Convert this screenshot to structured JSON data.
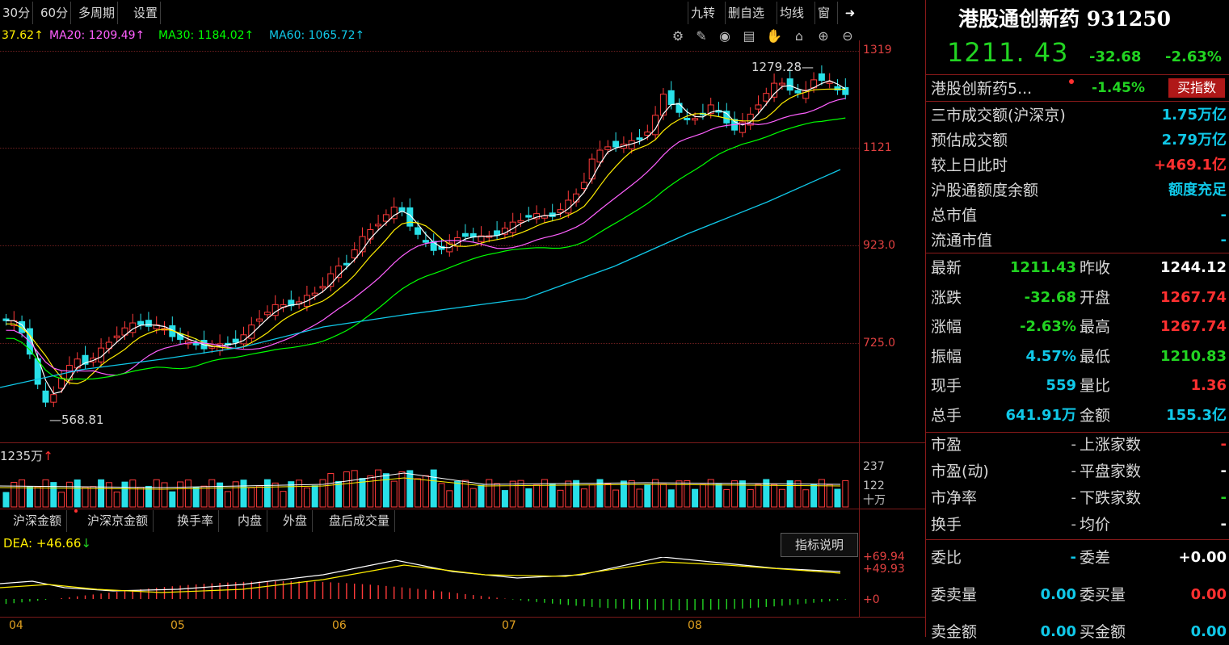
{
  "toolbar": {
    "left": [
      "30分",
      "60分",
      "多周期",
      "设置"
    ],
    "right": [
      "九转",
      "删自选",
      "均线",
      "窗"
    ]
  },
  "ma_legend": {
    "ma10": "37.62↑",
    "ma20": "MA20: 1209.49↑",
    "ma30": "MA30: 1184.02↑",
    "ma60": "MA60: 1065.72↑",
    "colors": {
      "ma10": "#ffee00",
      "ma20": "#ff60ff",
      "ma30": "#00ff00",
      "ma60": "#10c8e8"
    }
  },
  "price_axis": [
    "1319",
    "1121",
    "923.0",
    "725.0"
  ],
  "annotations": {
    "high": "1279.28",
    "low": "568.81"
  },
  "volume": {
    "label": "1235万",
    "axis": [
      "237",
      "122",
      "十万"
    ]
  },
  "bottom_tabs": [
    "沪深金额",
    "沪深京金额",
    "换手率",
    "内盘",
    "外盘",
    "盘后成交量"
  ],
  "macd": {
    "label": "DEA: +46.66",
    "button": "指标说明",
    "axis": [
      "+69.94",
      "+49.93",
      "+0"
    ]
  },
  "months": [
    "04",
    "05",
    "06",
    "07",
    "08"
  ],
  "panel": {
    "title": "港股通创新药 931250",
    "price": "1211. 43",
    "change": "-32.68",
    "change_pct": "-2.63%",
    "related": {
      "name": "港股创新药5...",
      "pct": "-1.45%",
      "button": "买指数"
    },
    "market": [
      {
        "label": "三市成交额(沪深京)",
        "value": "1.75万亿",
        "color": "#10c8e8"
      },
      {
        "label": "预估成交额",
        "value": "2.79万亿",
        "color": "#10c8e8"
      },
      {
        "label": "较上日此时",
        "value": "+469.1亿",
        "color": "#ff3030"
      },
      {
        "label": "沪股通额度余额",
        "value": "额度充足",
        "color": "#10c8e8"
      },
      {
        "label": "总市值",
        "value": "-",
        "color": "#10c8e8"
      },
      {
        "label": "流通市值",
        "value": "-",
        "color": "#10c8e8"
      }
    ],
    "quote": [
      {
        "l1": "最新",
        "v1": "1211.43",
        "c1": "#22d422",
        "l2": "昨收",
        "v2": "1244.12",
        "c2": "#ffffff"
      },
      {
        "l1": "涨跌",
        "v1": "-32.68",
        "c1": "#22d422",
        "l2": "开盘",
        "v2": "1267.74",
        "c2": "#ff3030"
      },
      {
        "l1": "涨幅",
        "v1": "-2.63%",
        "c1": "#22d422",
        "l2": "最高",
        "v2": "1267.74",
        "c2": "#ff3030"
      },
      {
        "l1": "振幅",
        "v1": "4.57%",
        "c1": "#10c8e8",
        "l2": "最低",
        "v2": "1210.83",
        "c2": "#22d422"
      },
      {
        "l1": "现手",
        "v1": "559",
        "c1": "#10c8e8",
        "l2": "量比",
        "v2": "1.36",
        "c2": "#ff3030"
      },
      {
        "l1": "总手",
        "v1": "641.91万",
        "c1": "#10c8e8",
        "l2": "金额",
        "v2": "155.3亿",
        "c2": "#10c8e8"
      }
    ],
    "stats": [
      {
        "l1": "市盈",
        "v1": "-",
        "l2": "上涨家数",
        "v2": "-",
        "c2": "#ff3030"
      },
      {
        "l1": "市盈(动)",
        "v1": "-",
        "l2": "平盘家数",
        "v2": "-",
        "c2": "#ffffff"
      },
      {
        "l1": "市净率",
        "v1": "-",
        "l2": "下跌家数",
        "v2": "-",
        "c2": "#22d422"
      },
      {
        "l1": "换手",
        "v1": "-",
        "l2": "均价",
        "v2": "-",
        "c2": "#ffffff"
      }
    ],
    "orders": [
      {
        "l1": "委比",
        "v1": "-",
        "c1": "#10c8e8",
        "l2": "委差",
        "v2": "+0.00",
        "c2": "#ffffff"
      },
      {
        "l1": "委卖量",
        "v1": "0.00",
        "c1": "#10c8e8",
        "l2": "委买量",
        "v2": "0.00",
        "c2": "#ff3030"
      },
      {
        "l1": "卖金额",
        "v1": "0.00",
        "c1": "#10c8e8",
        "l2": "买金额",
        "v2": "0.00",
        "c2": "#10c8e8"
      }
    ]
  }
}
